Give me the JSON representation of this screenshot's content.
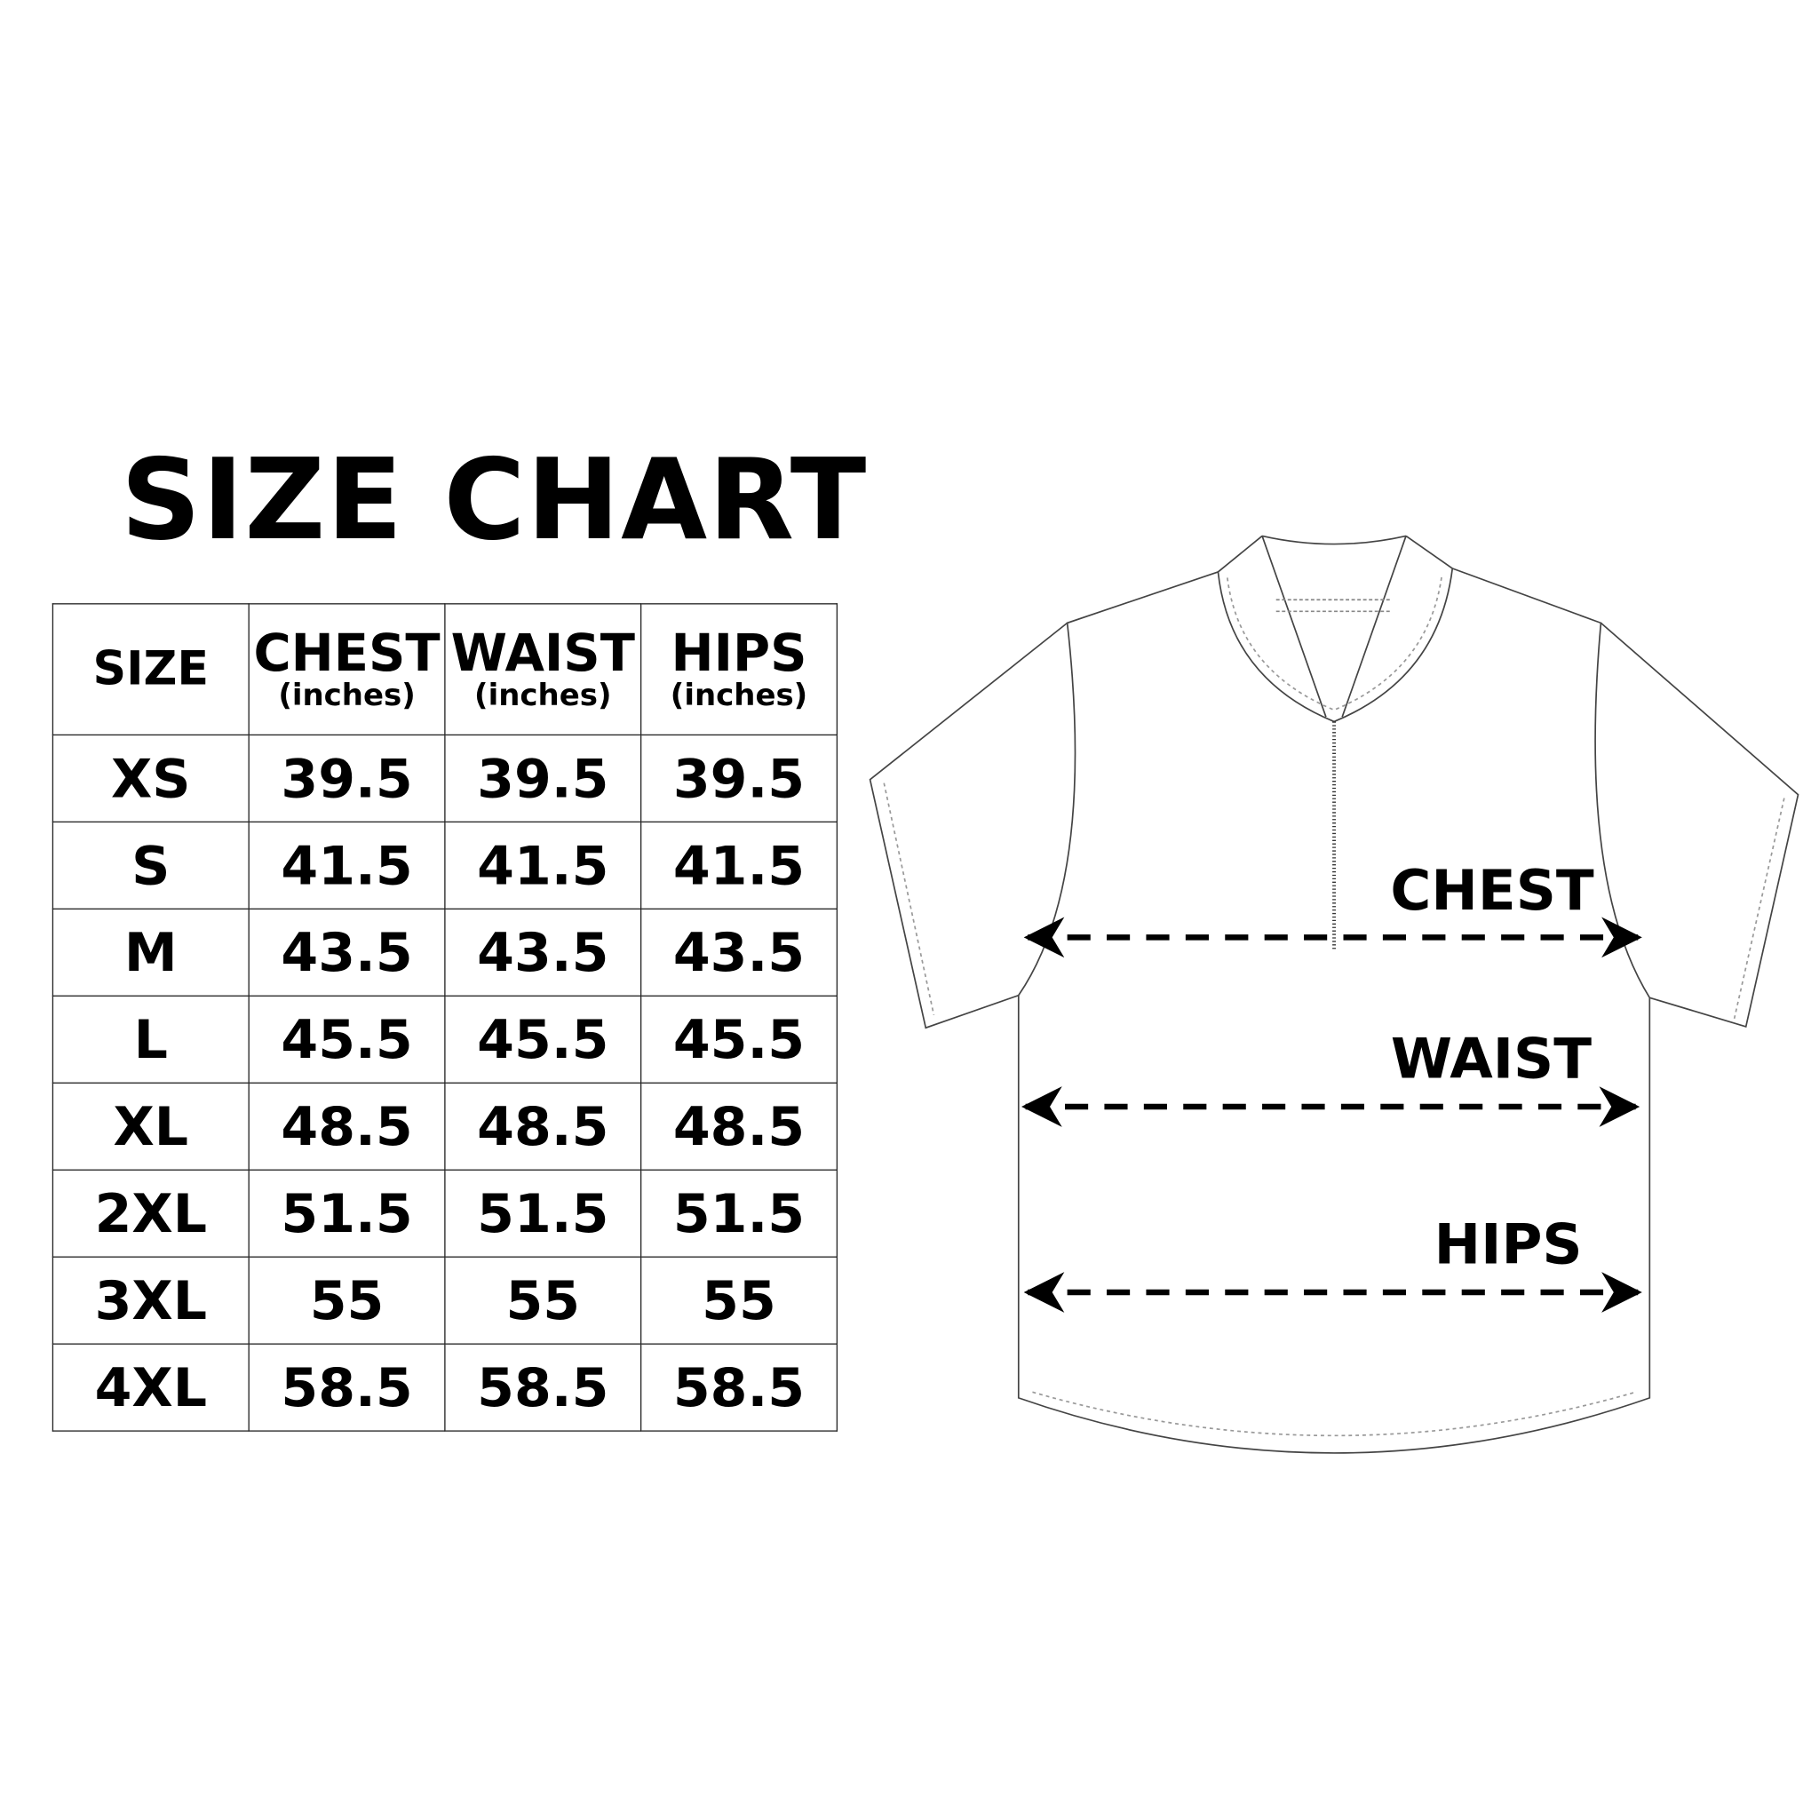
{
  "title": "SIZE CHART",
  "table": {
    "headers": [
      {
        "label": "SIZE",
        "unit": ""
      },
      {
        "label": "CHEST",
        "unit": "(inches)"
      },
      {
        "label": "WAIST",
        "unit": "(inches)"
      },
      {
        "label": "HIPS",
        "unit": "(inches)"
      }
    ],
    "rows": [
      [
        "XS",
        "39.5",
        "39.5",
        "39.5"
      ],
      [
        "S",
        "41.5",
        "41.5",
        "41.5"
      ],
      [
        "M",
        "43.5",
        "43.5",
        "43.5"
      ],
      [
        "L",
        "45.5",
        "45.5",
        "45.5"
      ],
      [
        "XL",
        "48.5",
        "48.5",
        "48.5"
      ],
      [
        "2XL",
        "51.5",
        "51.5",
        "51.5"
      ],
      [
        "3XL",
        "55",
        "55",
        "55"
      ],
      [
        "4XL",
        "58.5",
        "58.5",
        "58.5"
      ]
    ]
  },
  "diagram": {
    "labels": {
      "chest": "CHEST",
      "waist": "WAIST",
      "hips": "HIPS"
    },
    "icon": "quarter-zip-shirt-outline"
  }
}
